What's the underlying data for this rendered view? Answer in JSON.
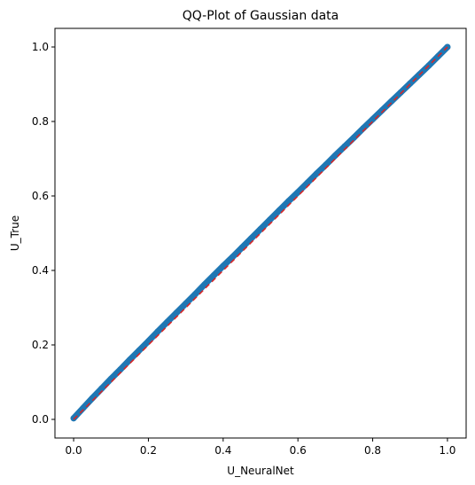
{
  "chart_data": {
    "type": "scatter",
    "title": "QQ-Plot of Gaussian data",
    "xlabel": "U_NeuralNet",
    "ylabel": "U_True",
    "xlim": [
      -0.05,
      1.05
    ],
    "ylim": [
      -0.05,
      1.05
    ],
    "xticks": [
      0.0,
      0.2,
      0.4,
      0.6,
      0.8,
      1.0
    ],
    "yticks": [
      0.0,
      0.2,
      0.4,
      0.6,
      0.8,
      1.0
    ],
    "xtick_labels": [
      "0.0",
      "0.2",
      "0.4",
      "0.6",
      "0.8",
      "1.0"
    ],
    "ytick_labels": [
      "0.0",
      "0.2",
      "0.4",
      "0.6",
      "0.8",
      "1.0"
    ],
    "grid": false,
    "series": [
      {
        "kind": "scatter",
        "color": "#1f77b4",
        "x": [
          0.0,
          0.025,
          0.05,
          0.075,
          0.1,
          0.125,
          0.15,
          0.175,
          0.2,
          0.225,
          0.25,
          0.275,
          0.3,
          0.325,
          0.35,
          0.375,
          0.4,
          0.425,
          0.45,
          0.475,
          0.5,
          0.525,
          0.55,
          0.575,
          0.6,
          0.625,
          0.65,
          0.675,
          0.7,
          0.725,
          0.75,
          0.775,
          0.8,
          0.825,
          0.85,
          0.875,
          0.9,
          0.925,
          0.95,
          0.975,
          1.0
        ],
        "y": [
          0.003,
          0.03,
          0.057,
          0.083,
          0.109,
          0.134,
          0.16,
          0.185,
          0.21,
          0.236,
          0.261,
          0.286,
          0.311,
          0.336,
          0.362,
          0.387,
          0.412,
          0.436,
          0.461,
          0.486,
          0.511,
          0.536,
          0.561,
          0.586,
          0.61,
          0.635,
          0.66,
          0.684,
          0.709,
          0.733,
          0.757,
          0.782,
          0.806,
          0.83,
          0.854,
          0.878,
          0.902,
          0.926,
          0.95,
          0.975,
          1.0
        ]
      },
      {
        "kind": "reference-line",
        "color": "#d62728",
        "dashed": true,
        "x": [
          0.0,
          1.0
        ],
        "y": [
          0.0,
          1.0
        ]
      }
    ]
  }
}
